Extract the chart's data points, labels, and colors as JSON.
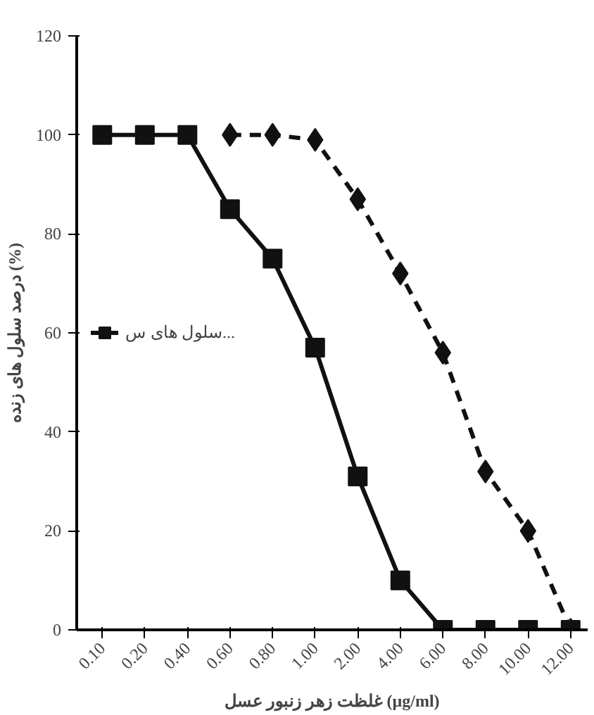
{
  "chart_data": {
    "type": "line",
    "xlabel": "غلظت زهر زنبور عسل (µg/ml)",
    "ylabel": "درصد سلول های زنده (%)",
    "categories": [
      "0.10",
      "0.20",
      "0.40",
      "0.60",
      "0.80",
      "1.00",
      "2.00",
      "4.00",
      "6.00",
      "8.00",
      "10.00",
      "12.00"
    ],
    "ylim": [
      0,
      120
    ],
    "yticks": [
      0,
      20,
      40,
      60,
      80,
      100,
      120
    ],
    "grid": false,
    "legend": "left",
    "series": [
      {
        "name": "سلول های س...",
        "color": "#111111",
        "marker": "square",
        "line_style": "solid",
        "values": [
          100,
          100,
          100,
          85,
          75,
          57,
          31,
          10,
          0,
          0,
          0,
          0
        ]
      },
      {
        "color": "#111111",
        "marker": "diamond",
        "line_style": "dashed",
        "values": [
          null,
          null,
          null,
          100,
          100,
          99,
          87,
          72,
          56,
          32,
          20,
          0
        ]
      }
    ]
  }
}
